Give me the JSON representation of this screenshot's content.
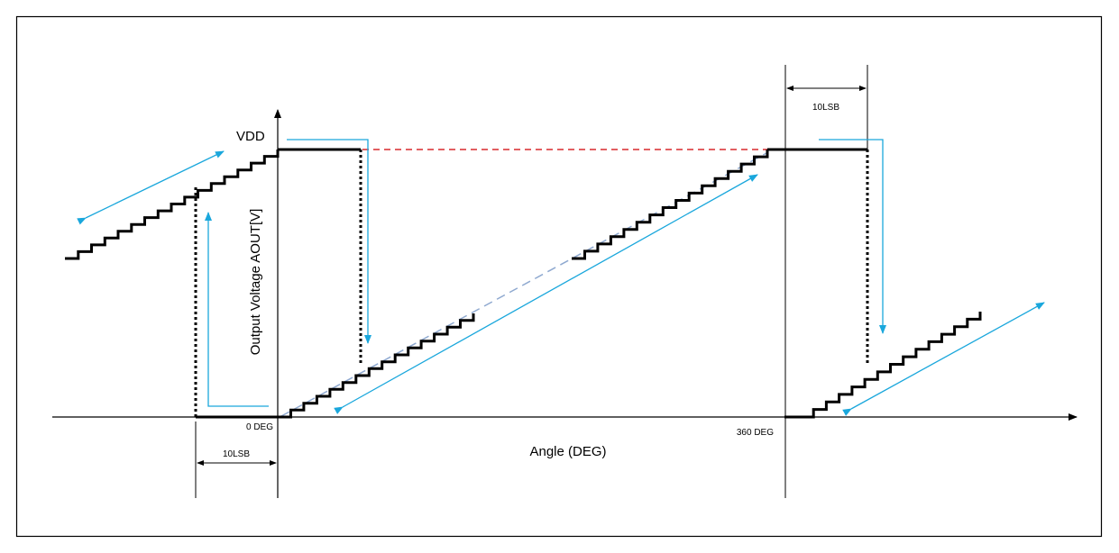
{
  "labels": {
    "vdd": "VDD",
    "y_axis": "Output Voltage AOUT[V]",
    "x_axis": "Angle (DEG)",
    "zero_deg": "0 DEG",
    "full_deg": "360 DEG",
    "lsb_left": "10LSB",
    "lsb_right": "10LSB"
  },
  "colors": {
    "waveform": "#000000",
    "arrow": "#1aa7dc",
    "vdd_reference": "#d9282d",
    "ideal_slope": "#8fa9d0"
  }
}
